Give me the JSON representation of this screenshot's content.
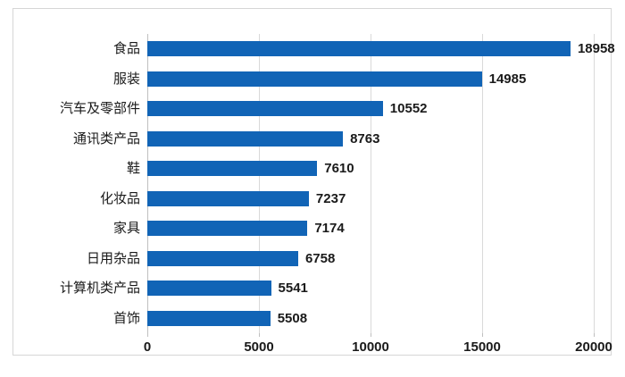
{
  "chart_data": {
    "type": "bar",
    "orientation": "horizontal",
    "title": "",
    "xlabel": "",
    "ylabel": "",
    "categories": [
      "食品",
      "服装",
      "汽车及零部件",
      "通讯类产品",
      "鞋",
      "化妆品",
      "家具",
      "日用杂品",
      "计算机类产品",
      "首饰"
    ],
    "values": [
      18958,
      14985,
      10552,
      8763,
      7610,
      7237,
      7174,
      6758,
      5541,
      5508
    ],
    "data_labels": [
      "18958",
      "14985",
      "10552",
      "8763",
      "7610",
      "7237",
      "7174",
      "6758",
      "5541",
      "5508"
    ],
    "xlim": [
      0,
      20000
    ],
    "x_ticks": [
      0,
      5000,
      10000,
      15000,
      20000
    ],
    "x_tick_labels": [
      "0",
      "5000",
      "10000",
      "15000",
      "20000"
    ],
    "grid": true,
    "legend": false,
    "bar_color": "#1164b6",
    "gridline_color": "#d9d9d9",
    "axis_line_color": "#bfbfbf",
    "frame_border_color": "#d6d6d6"
  }
}
